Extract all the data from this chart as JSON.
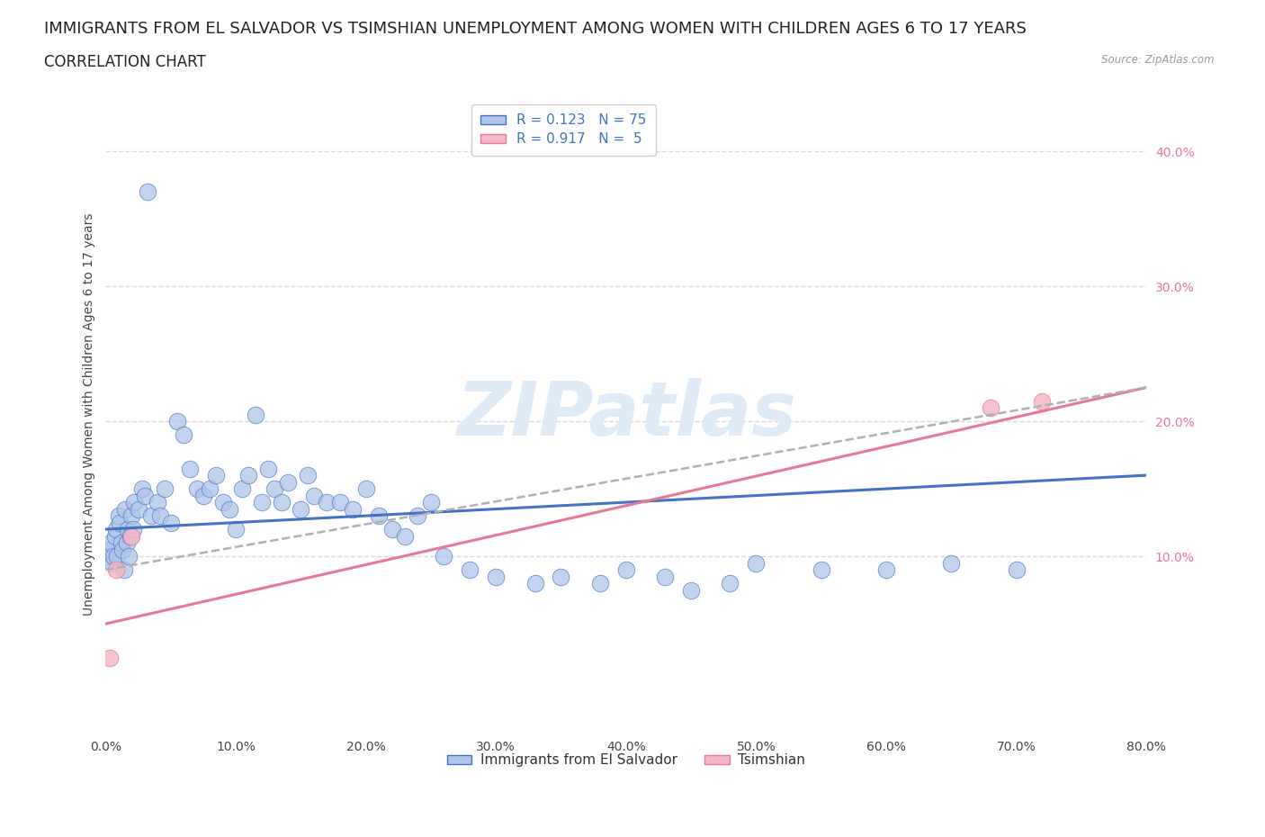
{
  "title": "IMMIGRANTS FROM EL SALVADOR VS TSIMSHIAN UNEMPLOYMENT AMONG WOMEN WITH CHILDREN AGES 6 TO 17 YEARS",
  "subtitle": "CORRELATION CHART",
  "source": "Source: ZipAtlas.com",
  "ylabel": "Unemployment Among Women with Children Ages 6 to 17 years",
  "watermark": "ZIPatlas",
  "legend_label1": "Immigrants from El Salvador",
  "legend_label2": "Tsimshian",
  "blue_color": "#aec6e8",
  "blue_line_color": "#4472c4",
  "pink_color": "#f4b8c8",
  "pink_line_color": "#e87898",
  "dashed_line_color": "#b0b0b0",
  "right_tick_color": "#e87898",
  "blue_scatter_x": [
    0.2,
    0.3,
    0.4,
    0.5,
    0.6,
    0.7,
    0.8,
    0.9,
    1.0,
    1.1,
    1.2,
    1.3,
    1.4,
    1.5,
    1.6,
    1.7,
    1.8,
    1.9,
    2.0,
    2.1,
    2.2,
    2.5,
    2.8,
    3.0,
    3.2,
    3.5,
    4.0,
    4.2,
    4.5,
    5.0,
    5.5,
    6.0,
    6.5,
    7.0,
    7.5,
    8.0,
    8.5,
    9.0,
    9.5,
    10.0,
    10.5,
    11.0,
    11.5,
    12.0,
    12.5,
    13.0,
    13.5,
    14.0,
    15.0,
    15.5,
    16.0,
    17.0,
    18.0,
    19.0,
    20.0,
    21.0,
    22.0,
    23.0,
    24.0,
    25.0,
    26.0,
    28.0,
    30.0,
    33.0,
    35.0,
    38.0,
    40.0,
    43.0,
    45.0,
    48.0,
    50.0,
    55.0,
    60.0,
    65.0,
    70.0
  ],
  "blue_scatter_y": [
    10.0,
    10.5,
    11.0,
    9.5,
    10.0,
    11.5,
    12.0,
    10.0,
    13.0,
    12.5,
    11.0,
    10.5,
    9.0,
    13.5,
    11.0,
    12.0,
    10.0,
    11.5,
    13.0,
    12.0,
    14.0,
    13.5,
    15.0,
    14.5,
    37.0,
    13.0,
    14.0,
    13.0,
    15.0,
    12.5,
    20.0,
    19.0,
    16.5,
    15.0,
    14.5,
    15.0,
    16.0,
    14.0,
    13.5,
    12.0,
    15.0,
    16.0,
    20.5,
    14.0,
    16.5,
    15.0,
    14.0,
    15.5,
    13.5,
    16.0,
    14.5,
    14.0,
    14.0,
    13.5,
    15.0,
    13.0,
    12.0,
    11.5,
    13.0,
    14.0,
    10.0,
    9.0,
    8.5,
    8.0,
    8.5,
    8.0,
    9.0,
    8.5,
    7.5,
    8.0,
    9.5,
    9.0,
    9.0,
    9.5,
    9.0
  ],
  "pink_scatter_x": [
    0.3,
    0.8,
    2.0,
    68.0,
    72.0
  ],
  "pink_scatter_y": [
    2.5,
    9.0,
    11.5,
    21.0,
    21.5
  ],
  "xlim": [
    0,
    80
  ],
  "ylim": [
    -3,
    44
  ],
  "xticks": [
    0,
    10,
    20,
    30,
    40,
    50,
    60,
    70,
    80
  ],
  "yticks_right": [
    10,
    20,
    30,
    40
  ],
  "grid_color": "#d8d8d8",
  "background_color": "#ffffff",
  "title_fontsize": 13,
  "subtitle_fontsize": 12,
  "axis_label_fontsize": 10,
  "tick_fontsize": 10,
  "watermark_fontsize": 60,
  "watermark_color": "#deeaf5",
  "blue_trend_x": [
    0,
    80
  ],
  "blue_trend_y": [
    12.0,
    16.0
  ],
  "pink_trend_x": [
    0,
    80
  ],
  "pink_trend_y": [
    5.0,
    22.5
  ],
  "dashed_trend_x": [
    0,
    80
  ],
  "dashed_trend_y": [
    9.0,
    22.5
  ]
}
